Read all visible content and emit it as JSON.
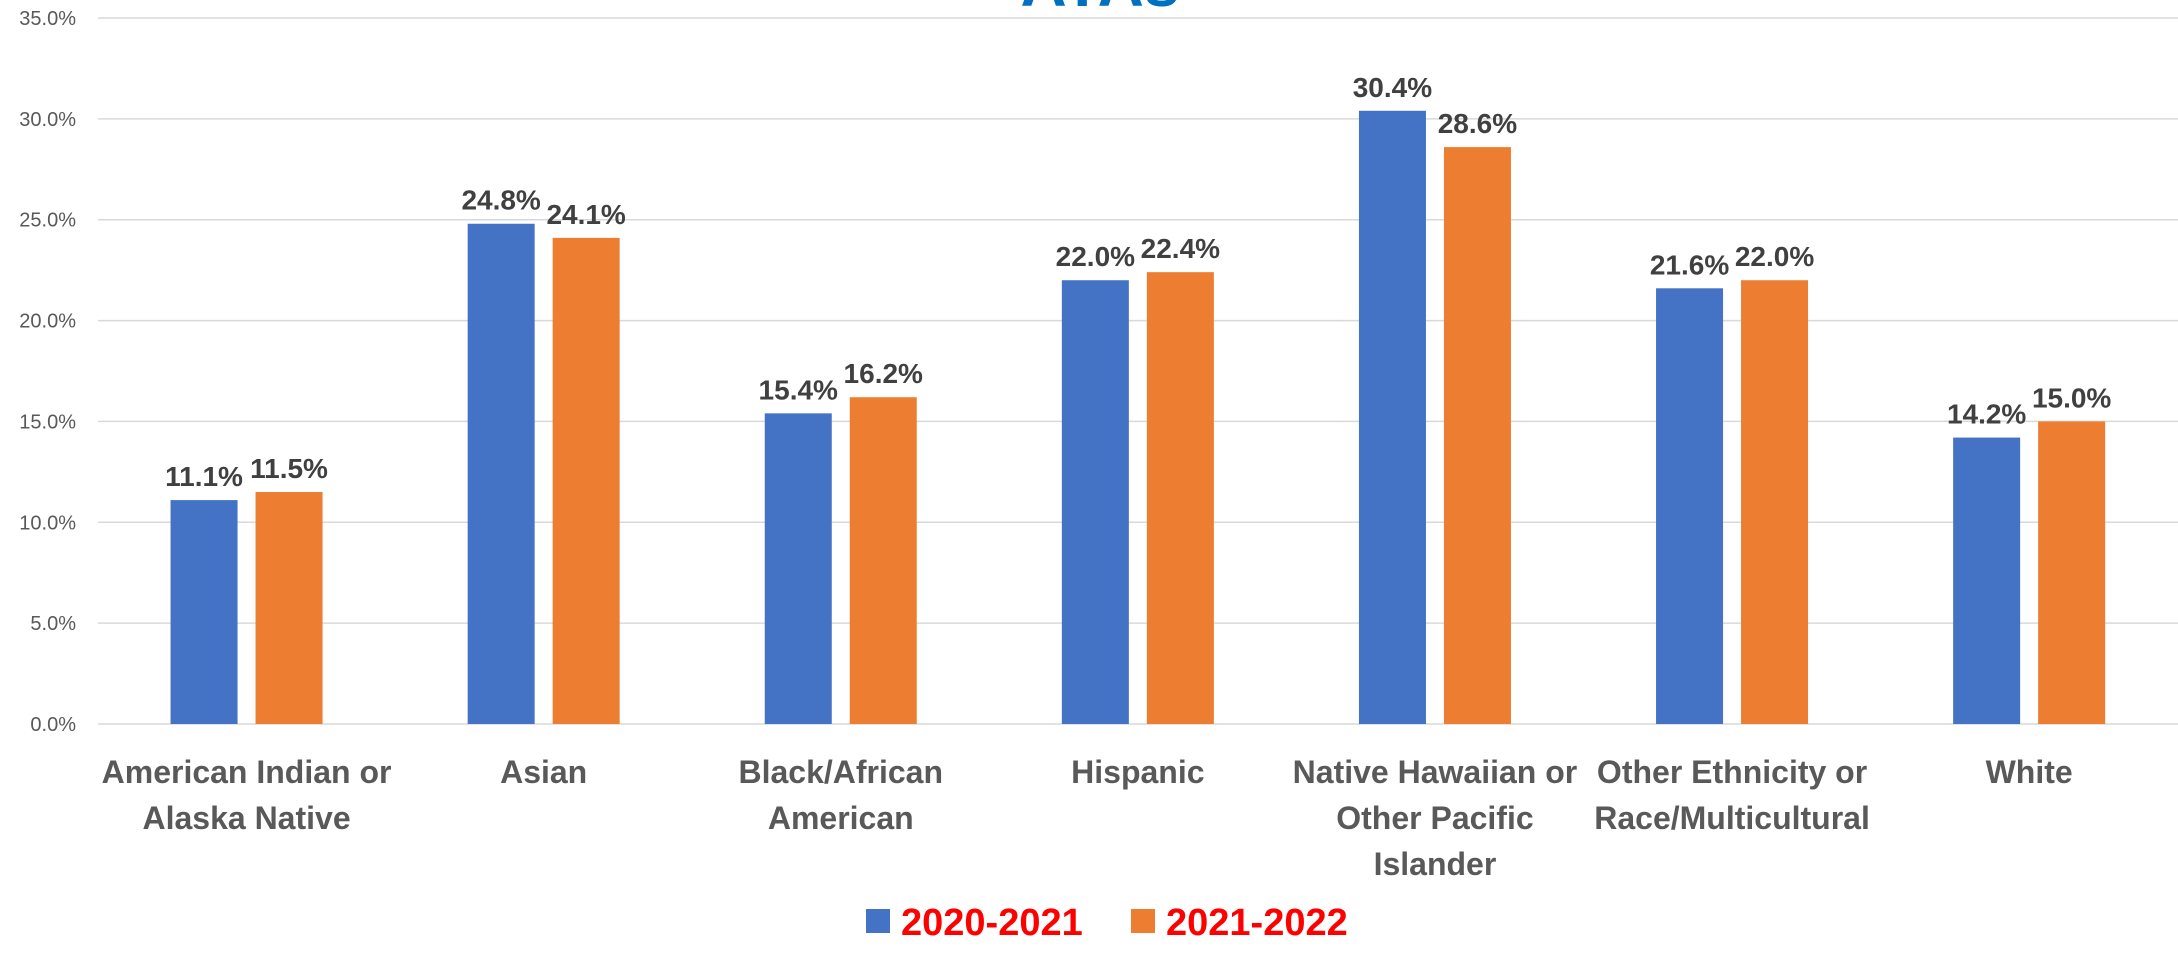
{
  "chart_data": {
    "type": "bar",
    "title": "AYAs",
    "categories": [
      [
        "American Indian or",
        "Alaska Native"
      ],
      [
        "Asian"
      ],
      [
        "Black/African",
        "American"
      ],
      [
        "Hispanic"
      ],
      [
        "Native Hawaiian or",
        "Other Pacific",
        "Islander"
      ],
      [
        "Other Ethnicity or",
        "Race/Multicultural"
      ],
      [
        "White"
      ]
    ],
    "series": [
      {
        "name": "2020-2021",
        "values": [
          11.1,
          24.8,
          15.4,
          22.0,
          30.4,
          21.6,
          14.2
        ],
        "color": "#4472C4"
      },
      {
        "name": "2021-2022",
        "values": [
          11.5,
          24.1,
          16.2,
          22.4,
          28.6,
          22.0,
          15.0
        ],
        "color": "#ED7D31"
      }
    ],
    "ylim": [
      0,
      35
    ],
    "yticks": [
      "0.0%",
      "5.0%",
      "10.0%",
      "15.0%",
      "20.0%",
      "25.0%",
      "30.0%",
      "35.0%"
    ],
    "value_suffix": "%",
    "grid": true,
    "legend_position": "bottom",
    "legend_text_color": "#FF0000",
    "title_color": "#0070C0",
    "gridline_color": "#D9D9D9"
  }
}
